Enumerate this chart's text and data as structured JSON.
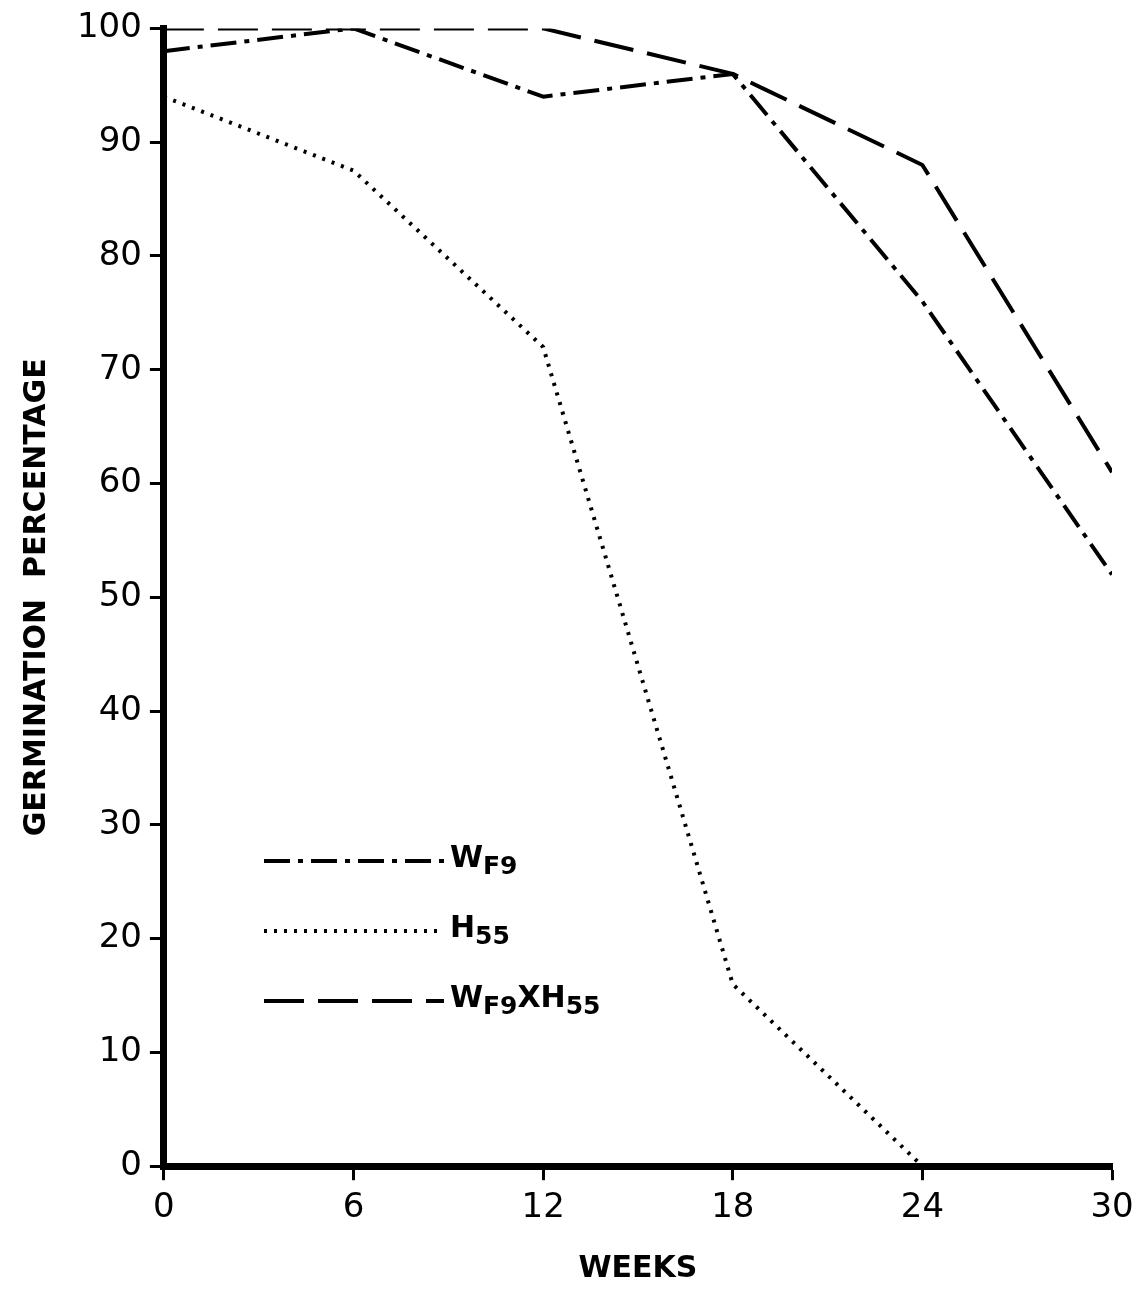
{
  "chart_data": {
    "type": "line",
    "xlabel": "WEEKS",
    "ylabel": "GERMINATION  PERCENTAGE",
    "x": [
      0,
      6,
      12,
      18,
      24,
      30
    ],
    "series": [
      {
        "name": "W$_{F9}$",
        "color": "#000000",
        "line_style": "dashdot",
        "values": [
          98,
          100,
          94,
          96,
          76,
          52
        ]
      },
      {
        "name": "H$_{55}$",
        "color": "#000000",
        "line_style": "dotted",
        "values": [
          94,
          87.5,
          72,
          16,
          0,
          null
        ]
      },
      {
        "name": "W$_{F9}$XH$_{55}$",
        "color": "#000000",
        "line_style": "dashed",
        "values": [
          100,
          100,
          100,
          96,
          88,
          61
        ]
      }
    ],
    "xlim": [
      0,
      30
    ],
    "xticks": [
      0,
      6,
      12,
      18,
      24,
      30
    ],
    "ylim": [
      0,
      100
    ],
    "yticks": [
      0,
      10,
      20,
      30,
      40,
      50,
      60,
      70,
      80,
      90,
      100
    ],
    "grid": false,
    "legend": "bottom left",
    "marker": "none"
  }
}
